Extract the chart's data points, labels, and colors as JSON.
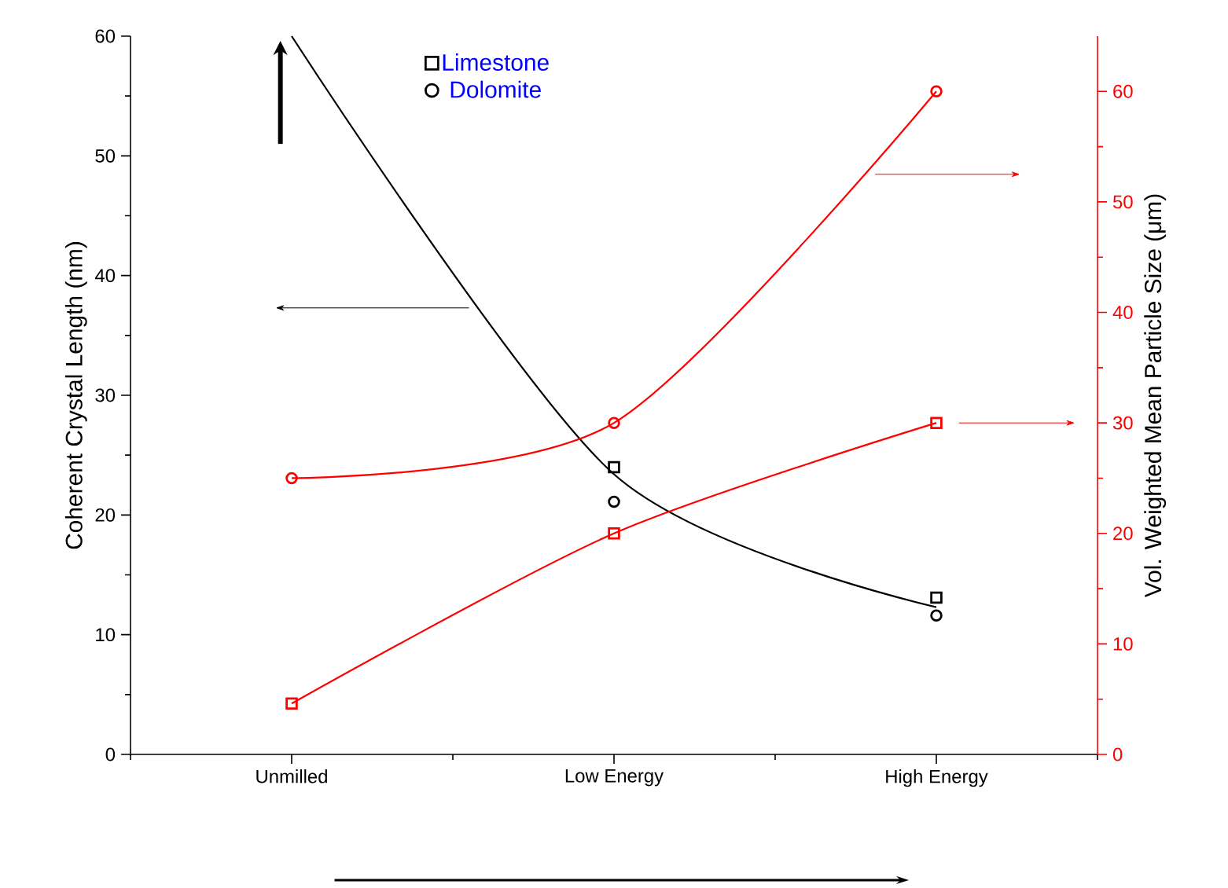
{
  "chart_data": {
    "type": "line",
    "categories": [
      "Unmilled",
      "Low Energy",
      "High Energy"
    ],
    "ylabel": "Coherent Crystal Length (nm)",
    "y2label": "Vol. Weighted Mean Particle Size (μm)",
    "ylim": [
      0,
      60
    ],
    "yticks": [
      0,
      10,
      20,
      30,
      40,
      50,
      60
    ],
    "y2lim": [
      0,
      65
    ],
    "y2ticks": [
      0,
      10,
      20,
      30,
      40,
      50,
      60
    ],
    "legend": "top",
    "series": [
      {
        "name": "Limestone",
        "type": "scatter",
        "marker": "square",
        "color": "#000000",
        "values": [
          null,
          24,
          13.1
        ]
      },
      {
        "name": "Dolomite",
        "type": "scatter",
        "marker": "circle",
        "color": "#000000",
        "values": [
          null,
          21.1,
          11.6
        ]
      },
      {
        "marker": "none",
        "color": "#000000",
        "values": [
          60,
          23.4,
          12.3
        ]
      },
      {
        "axis": "y2",
        "marker": "square",
        "color": "#ff0000",
        "values": [
          4.6,
          20,
          30
        ]
      },
      {
        "axis": "y2",
        "marker": "circle",
        "color": "#ff0000",
        "values": [
          25,
          30,
          60
        ]
      }
    ]
  }
}
